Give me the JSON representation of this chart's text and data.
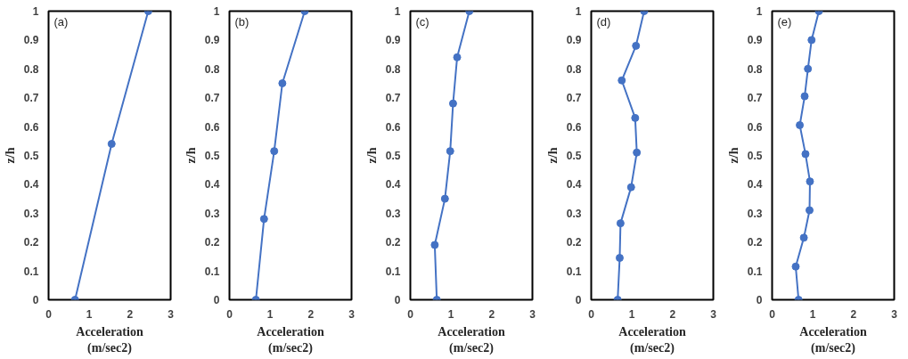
{
  "chart_data": [
    {
      "type": "line",
      "annotations": [
        "(a)"
      ],
      "xlabel": "Acceleration\n(m/sec2)",
      "ylabel": "z/h",
      "xlim": [
        0,
        3
      ],
      "ylim": [
        0,
        1
      ],
      "xticks": [
        0,
        1,
        2,
        3
      ],
      "yticks": [
        0,
        0.1,
        0.2,
        0.3,
        0.4,
        0.5,
        0.6,
        0.7,
        0.8,
        0.9,
        1
      ],
      "grid": false,
      "marker": "circle",
      "line_style": "solid",
      "series": [
        {
          "color": "#4472c4",
          "x": [
            0.65,
            1.55,
            2.45
          ],
          "values": [
            0,
            0.54,
            1
          ]
        }
      ]
    },
    {
      "type": "line",
      "annotations": [
        "(b)"
      ],
      "xlabel": "Acceleration\n(m/sec2)",
      "ylabel": "z/h",
      "xlim": [
        0,
        3
      ],
      "ylim": [
        0,
        1
      ],
      "xticks": [
        0,
        1,
        2,
        3
      ],
      "yticks": [
        0,
        0.1,
        0.2,
        0.3,
        0.4,
        0.5,
        0.6,
        0.7,
        0.8,
        0.9,
        1
      ],
      "grid": false,
      "marker": "circle",
      "line_style": "solid",
      "series": [
        {
          "color": "#4472c4",
          "x": [
            0.65,
            0.85,
            1.1,
            1.3,
            1.85
          ],
          "values": [
            0,
            0.28,
            0.515,
            0.75,
            1
          ]
        }
      ]
    },
    {
      "type": "line",
      "annotations": [
        "(c)"
      ],
      "xlabel": "Acceleration\n(m/sec2)",
      "ylabel": "z/h",
      "xlim": [
        0,
        3
      ],
      "ylim": [
        0,
        1
      ],
      "xticks": [
        0,
        1,
        2,
        3
      ],
      "yticks": [
        0,
        0.1,
        0.2,
        0.3,
        0.4,
        0.5,
        0.6,
        0.7,
        0.8,
        0.9,
        1
      ],
      "grid": false,
      "marker": "circle",
      "line_style": "solid",
      "series": [
        {
          "color": "#4472c4",
          "x": [
            0.65,
            0.6,
            0.85,
            0.98,
            1.05,
            1.15,
            1.45
          ],
          "values": [
            0,
            0.19,
            0.35,
            0.515,
            0.68,
            0.84,
            1
          ]
        }
      ]
    },
    {
      "type": "line",
      "annotations": [
        "(d)"
      ],
      "xlabel": "Acceleration\n(m/sec2)",
      "ylabel": "z/h",
      "xlim": [
        0,
        3
      ],
      "ylim": [
        0,
        1
      ],
      "xticks": [
        0,
        1,
        2,
        3
      ],
      "yticks": [
        0,
        0.1,
        0.2,
        0.3,
        0.4,
        0.5,
        0.6,
        0.7,
        0.8,
        0.9,
        1
      ],
      "grid": false,
      "marker": "circle",
      "line_style": "solid",
      "series": [
        {
          "color": "#4472c4",
          "x": [
            0.65,
            0.7,
            0.72,
            0.98,
            1.12,
            1.08,
            0.75,
            1.1,
            1.3
          ],
          "values": [
            0,
            0.145,
            0.265,
            0.39,
            0.51,
            0.63,
            0.76,
            0.88,
            1
          ]
        }
      ]
    },
    {
      "type": "line",
      "annotations": [
        "(e)"
      ],
      "xlabel": "Acceleration\n(m/sec2)",
      "ylabel": "z/h",
      "xlim": [
        0,
        3
      ],
      "ylim": [
        0,
        1
      ],
      "xticks": [
        0,
        1,
        2,
        3
      ],
      "yticks": [
        0,
        0.1,
        0.2,
        0.3,
        0.4,
        0.5,
        0.6,
        0.7,
        0.8,
        0.9,
        1
      ],
      "grid": false,
      "marker": "circle",
      "line_style": "solid",
      "series": [
        {
          "color": "#4472c4",
          "x": [
            0.65,
            0.58,
            0.78,
            0.92,
            0.93,
            0.82,
            0.68,
            0.8,
            0.88,
            0.97,
            1.15
          ],
          "values": [
            0,
            0.115,
            0.215,
            0.31,
            0.41,
            0.505,
            0.605,
            0.705,
            0.8,
            0.9,
            1
          ]
        }
      ]
    }
  ]
}
